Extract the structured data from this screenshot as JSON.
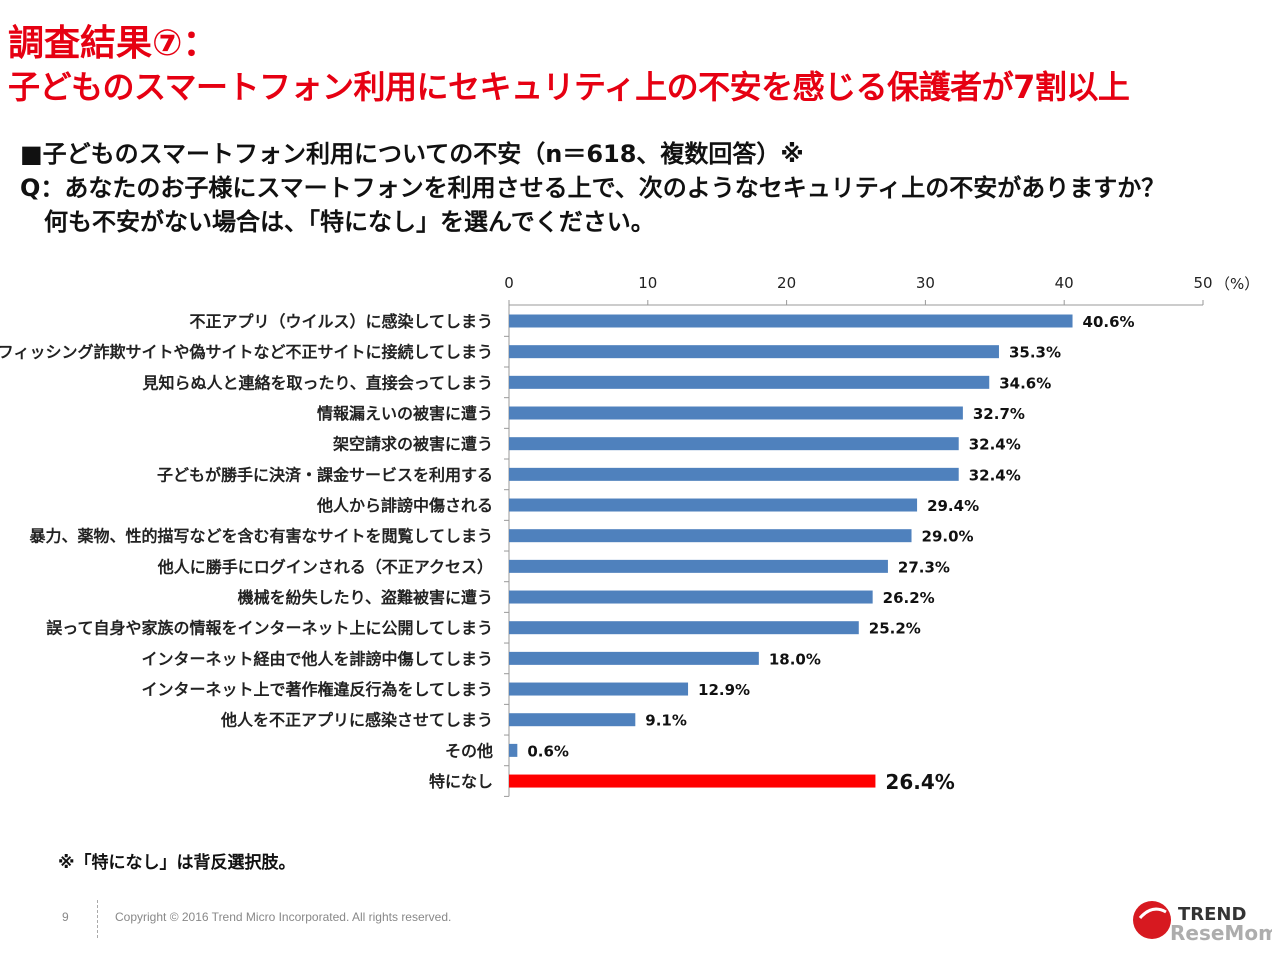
{
  "header": {
    "title": "調査結果⑦：",
    "subtitle": "子どものスマートフォン利用にセキュリティ上の不安を感じる保護者が7割以上"
  },
  "question": {
    "line1": "■子どものスマートフォン利用についての不安（n＝618、複数回答）※",
    "line2": "Q：あなたのお子様にスマートフォンを利用させる上で、次のようなセキュリティ上の不安がありますか？",
    "line3": "　何も不安がない場合は、「特になし」を選んでください。"
  },
  "chart_data": {
    "type": "bar",
    "orientation": "horizontal",
    "categories": [
      "不正アプリ（ウイルス）に感染してしまう",
      "フィッシング詐欺サイトや偽サイトなど不正サイトに接続してしまう",
      "見知らぬ人と連絡を取ったり、直接会ってしまう",
      "情報漏えいの被害に遭う",
      "架空請求の被害に遭う",
      "子どもが勝手に決済・課金サービスを利用する",
      "他人から誹謗中傷される",
      "暴力、薬物、性的描写などを含む有害なサイトを閲覧してしまう",
      "他人に勝手にログインされる（不正アクセス）",
      "機械を紛失したり、盗難被害に遭う",
      "誤って自身や家族の情報をインターネット上に公開してしまう",
      "インターネット経由で他人を誹謗中傷してしまう",
      "インターネット上で著作権違反行為をしてしまう",
      "他人を不正アプリに感染させてしまう",
      "その他",
      "特になし"
    ],
    "values": [
      40.6,
      35.3,
      34.6,
      32.7,
      32.4,
      32.4,
      29.4,
      29.0,
      27.3,
      26.2,
      25.2,
      18.0,
      12.9,
      9.1,
      0.6,
      26.4
    ],
    "data_labels": [
      "40.6%",
      "35.3%",
      "34.6%",
      "32.7%",
      "32.4%",
      "32.4%",
      "29.4%",
      "29.0%",
      "27.3%",
      "26.2%",
      "25.2%",
      "18.0%",
      "12.9%",
      "9.1%",
      "0.6%",
      "26.4%"
    ],
    "xlim": [
      0,
      50
    ],
    "xticks": [
      "0",
      "10",
      "20",
      "30",
      "40",
      "50"
    ],
    "xunit": "（%）",
    "axis_position": "top",
    "grid": false,
    "colors": {
      "default": "#4f81bd",
      "highlight": "#ff0000"
    },
    "highlight_index": 15
  },
  "footnote": "※「特になし」は背反選択肢。",
  "footer": {
    "page": "9",
    "copyright": "Copyright © 2016 Trend Micro Incorporated. All rights reserved.",
    "logo_text": "TREND MICRO",
    "watermark": "ReseMom"
  }
}
